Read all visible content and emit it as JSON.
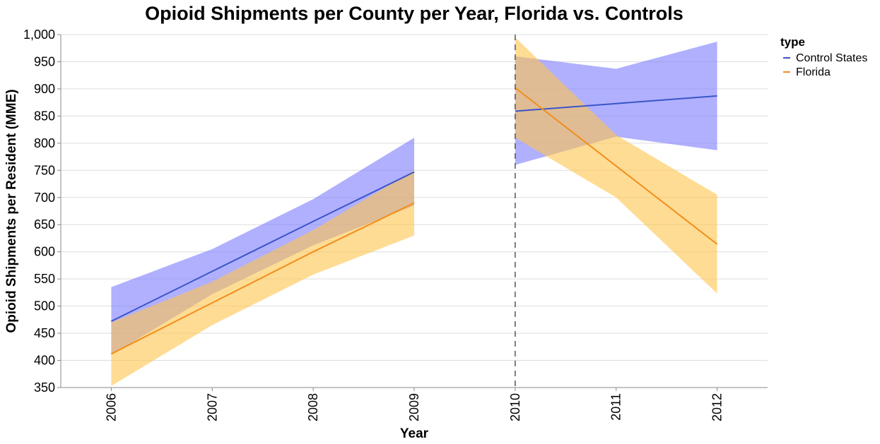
{
  "chart_data": {
    "type": "line",
    "title": "Opioid Shipments per County per Year, Florida vs. Controls",
    "xlabel": "Year",
    "ylabel": "Opioid Shipments per Resident (MME)",
    "ylim": [
      350,
      1000
    ],
    "yticks": [
      "350",
      "400",
      "450",
      "500",
      "550",
      "600",
      "650",
      "700",
      "750",
      "800",
      "850",
      "900",
      "950",
      "1,000"
    ],
    "xlim": [
      2005.5,
      2012.5
    ],
    "xticks": [
      "2006",
      "2007",
      "2008",
      "2009",
      "2010",
      "2011",
      "2012"
    ],
    "grid": true,
    "policy_line_year": 2010,
    "legend": {
      "title": "type",
      "placement": "top-right",
      "items": [
        "Control States",
        "Florida"
      ]
    },
    "series": [
      {
        "name": "Control States",
        "color": "#3b55c8",
        "band_color": "#7b7bff",
        "segments": [
          {
            "x": [
              2006,
              2007,
              2008,
              2009
            ],
            "y": [
              472,
              564,
              656,
              747
            ],
            "lower": [
              410,
              522,
              612,
              685
            ],
            "upper": [
              535,
              605,
              697,
              810
            ]
          },
          {
            "x": [
              2010,
              2011,
              2012
            ],
            "y": [
              859,
              873,
              887
            ],
            "lower": [
              760,
              812,
              787
            ],
            "upper": [
              960,
              937,
              987
            ]
          }
        ]
      },
      {
        "name": "Florida",
        "color": "#f28e1c",
        "band_color": "#ffc44d",
        "segments": [
          {
            "x": [
              2006,
              2007,
              2008,
              2009
            ],
            "y": [
              412,
              506,
              600,
              690
            ],
            "lower": [
              353,
              465,
              558,
              630
            ],
            "upper": [
              470,
              545,
              640,
              750
            ]
          },
          {
            "x": [
              2010,
              2011,
              2012
            ],
            "y": [
              902,
              758,
              614
            ],
            "lower": [
              810,
              700,
              523
            ],
            "upper": [
              995,
              815,
              705
            ]
          }
        ]
      }
    ]
  }
}
